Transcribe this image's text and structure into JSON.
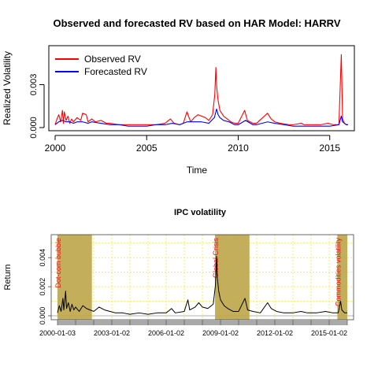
{
  "chart_data": [
    {
      "type": "line",
      "title": "Observed and forecasted RV based on HAR Model: HARRV",
      "xlabel": "Time",
      "ylabel": "Realized Volatility",
      "xlim": [
        2000,
        2016
      ],
      "ylim": [
        0,
        0.0055
      ],
      "x_ticks": [
        2000,
        2005,
        2010,
        2015
      ],
      "x_tick_labels": [
        "2000",
        "2005",
        "2010",
        "2015"
      ],
      "y_ticks": [
        0,
        0.003
      ],
      "y_tick_labels": [
        "0.000",
        "0.003"
      ],
      "legend": {
        "placement": "top-left"
      },
      "series": [
        {
          "name": "Observed RV",
          "color": "#ff0000",
          "points": [
            [
              2000.0,
              0.0002
            ],
            [
              2000.1,
              0.0006
            ],
            [
              2000.2,
              0.0009
            ],
            [
              2000.3,
              0.0004
            ],
            [
              2000.4,
              0.0012
            ],
            [
              2000.45,
              0.0003
            ],
            [
              2000.5,
              0.0011
            ],
            [
              2000.6,
              0.0005
            ],
            [
              2000.7,
              0.0008
            ],
            [
              2000.8,
              0.0003
            ],
            [
              2000.9,
              0.0006
            ],
            [
              2001.0,
              0.0004
            ],
            [
              2001.2,
              0.0007
            ],
            [
              2001.4,
              0.0005
            ],
            [
              2001.5,
              0.001
            ],
            [
              2001.7,
              0.0009
            ],
            [
              2001.8,
              0.0004
            ],
            [
              2002.0,
              0.0006
            ],
            [
              2002.2,
              0.0004
            ],
            [
              2002.5,
              0.0005
            ],
            [
              2002.8,
              0.0003
            ],
            [
              2003.0,
              0.0003
            ],
            [
              2003.5,
              0.0002
            ],
            [
              2004.0,
              0.0002
            ],
            [
              2004.5,
              0.0002
            ],
            [
              2005.0,
              0.0002
            ],
            [
              2005.5,
              0.0002
            ],
            [
              2006.0,
              0.0003
            ],
            [
              2006.3,
              0.0006
            ],
            [
              2006.5,
              0.0003
            ],
            [
              2006.8,
              0.0002
            ],
            [
              2007.0,
              0.0003
            ],
            [
              2007.2,
              0.0011
            ],
            [
              2007.4,
              0.0004
            ],
            [
              2007.6,
              0.0007
            ],
            [
              2007.8,
              0.0009
            ],
            [
              2008.0,
              0.0008
            ],
            [
              2008.2,
              0.0007
            ],
            [
              2008.4,
              0.0005
            ],
            [
              2008.6,
              0.0009
            ],
            [
              2008.72,
              0.0023
            ],
            [
              2008.78,
              0.0042
            ],
            [
              2008.82,
              0.0029
            ],
            [
              2008.9,
              0.0019
            ],
            [
              2009.0,
              0.0012
            ],
            [
              2009.1,
              0.001
            ],
            [
              2009.2,
              0.0008
            ],
            [
              2009.4,
              0.0006
            ],
            [
              2009.6,
              0.0004
            ],
            [
              2009.8,
              0.0003
            ],
            [
              2010.0,
              0.0003
            ],
            [
              2010.35,
              0.0012
            ],
            [
              2010.5,
              0.0005
            ],
            [
              2010.8,
              0.0003
            ],
            [
              2011.0,
              0.0003
            ],
            [
              2011.6,
              0.001
            ],
            [
              2011.8,
              0.0006
            ],
            [
              2012.0,
              0.0004
            ],
            [
              2012.3,
              0.0003
            ],
            [
              2012.8,
              0.0002
            ],
            [
              2013.0,
              0.0002
            ],
            [
              2013.45,
              0.0003
            ],
            [
              2013.6,
              0.0002
            ],
            [
              2014.0,
              0.0002
            ],
            [
              2014.5,
              0.0002
            ],
            [
              2014.9,
              0.0003
            ],
            [
              2015.2,
              0.0002
            ],
            [
              2015.5,
              0.0002
            ],
            [
              2015.63,
              0.0051
            ],
            [
              2015.7,
              0.0006
            ],
            [
              2015.8,
              0.0003
            ],
            [
              2015.9,
              0.0002
            ],
            [
              2016.0,
              0.0002
            ]
          ]
        },
        {
          "name": "Forecasted RV",
          "color": "#0000ff",
          "points": [
            [
              2000.0,
              0.0002
            ],
            [
              2000.2,
              0.0004
            ],
            [
              2000.4,
              0.0005
            ],
            [
              2000.6,
              0.0004
            ],
            [
              2000.8,
              0.0004
            ],
            [
              2001.0,
              0.0003
            ],
            [
              2001.2,
              0.0004
            ],
            [
              2001.5,
              0.0004
            ],
            [
              2001.8,
              0.0003
            ],
            [
              2002.0,
              0.0004
            ],
            [
              2002.5,
              0.0003
            ],
            [
              2003.0,
              0.0002
            ],
            [
              2003.5,
              0.0002
            ],
            [
              2004.0,
              0.0001
            ],
            [
              2004.5,
              0.0001
            ],
            [
              2005.0,
              0.0001
            ],
            [
              2005.5,
              0.0002
            ],
            [
              2006.0,
              0.0002
            ],
            [
              2006.4,
              0.0003
            ],
            [
              2006.8,
              0.0002
            ],
            [
              2007.2,
              0.0004
            ],
            [
              2007.6,
              0.0004
            ],
            [
              2008.0,
              0.0004
            ],
            [
              2008.4,
              0.0003
            ],
            [
              2008.7,
              0.0007
            ],
            [
              2008.78,
              0.0011
            ],
            [
              2008.82,
              0.0013
            ],
            [
              2008.9,
              0.0009
            ],
            [
              2009.0,
              0.0007
            ],
            [
              2009.2,
              0.0005
            ],
            [
              2009.5,
              0.0004
            ],
            [
              2009.8,
              0.0002
            ],
            [
              2010.0,
              0.0002
            ],
            [
              2010.4,
              0.0005
            ],
            [
              2010.8,
              0.0002
            ],
            [
              2011.0,
              0.0002
            ],
            [
              2011.6,
              0.0004
            ],
            [
              2012.0,
              0.0003
            ],
            [
              2012.5,
              0.0002
            ],
            [
              2013.0,
              0.0001
            ],
            [
              2013.5,
              0.0001
            ],
            [
              2014.0,
              0.0001
            ],
            [
              2014.5,
              0.0001
            ],
            [
              2015.0,
              0.0001
            ],
            [
              2015.5,
              0.0002
            ],
            [
              2015.63,
              0.0008
            ],
            [
              2015.7,
              0.0004
            ],
            [
              2015.9,
              0.0002
            ],
            [
              2016.0,
              0.0002
            ]
          ]
        }
      ]
    },
    {
      "type": "line",
      "title": "IPC volatility",
      "xlabel": "",
      "ylabel": "Return",
      "ylim": [
        0,
        0.0052
      ],
      "y_ticks": [
        0,
        0.002,
        0.004
      ],
      "y_tick_labels": [
        "0.000",
        "0.002",
        "0.004"
      ],
      "x_tick_labels": [
        "2000-01-03",
        "2003-01-02",
        "2006-01-02",
        "2009-01-02",
        "2012-01-02",
        "2015-01-02"
      ],
      "x_ticks": [
        2000.0,
        2003.0,
        2006.0,
        2009.0,
        2012.0,
        2015.0
      ],
      "xlim": [
        2000.0,
        2016.0
      ],
      "grid": true,
      "shaded_periods": [
        {
          "label": "Dot-com bubble",
          "start": 2000.0,
          "end": 2001.9
        },
        {
          "label": "Global Crisis",
          "start": 2008.7,
          "end": 2010.6
        },
        {
          "label": "Commodities volatility",
          "start": 2015.45,
          "end": 2016.0
        }
      ],
      "series": [
        {
          "name": "",
          "color": "#000000",
          "points": [
            [
              2000.0,
              0.0002
            ],
            [
              2000.1,
              0.0007
            ],
            [
              2000.2,
              0.0003
            ],
            [
              2000.3,
              0.0012
            ],
            [
              2000.35,
              0.0004
            ],
            [
              2000.45,
              0.0017
            ],
            [
              2000.5,
              0.0005
            ],
            [
              2000.6,
              0.0009
            ],
            [
              2000.7,
              0.0003
            ],
            [
              2000.8,
              0.0008
            ],
            [
              2000.9,
              0.0004
            ],
            [
              2001.0,
              0.0006
            ],
            [
              2001.2,
              0.0003
            ],
            [
              2001.4,
              0.0007
            ],
            [
              2001.6,
              0.0005
            ],
            [
              2001.8,
              0.0004
            ],
            [
              2002.0,
              0.0003
            ],
            [
              2002.3,
              0.0006
            ],
            [
              2002.6,
              0.0004
            ],
            [
              2002.9,
              0.0003
            ],
            [
              2003.2,
              0.0002
            ],
            [
              2003.6,
              0.0002
            ],
            [
              2004.0,
              0.0001
            ],
            [
              2004.5,
              0.0002
            ],
            [
              2005.0,
              0.0001
            ],
            [
              2005.5,
              0.0002
            ],
            [
              2006.0,
              0.0002
            ],
            [
              2006.3,
              0.0005
            ],
            [
              2006.5,
              0.0002
            ],
            [
              2007.0,
              0.0003
            ],
            [
              2007.2,
              0.0011
            ],
            [
              2007.3,
              0.0004
            ],
            [
              2007.6,
              0.0006
            ],
            [
              2007.8,
              0.0009
            ],
            [
              2008.0,
              0.0006
            ],
            [
              2008.3,
              0.0005
            ],
            [
              2008.6,
              0.0008
            ],
            [
              2008.72,
              0.0021
            ],
            [
              2008.78,
              0.0041
            ],
            [
              2008.82,
              0.0027
            ],
            [
              2008.9,
              0.0017
            ],
            [
              2009.0,
              0.0011
            ],
            [
              2009.2,
              0.0007
            ],
            [
              2009.4,
              0.0005
            ],
            [
              2009.7,
              0.0003
            ],
            [
              2010.0,
              0.0003
            ],
            [
              2010.35,
              0.0012
            ],
            [
              2010.5,
              0.0004
            ],
            [
              2010.8,
              0.0003
            ],
            [
              2011.2,
              0.0002
            ],
            [
              2011.6,
              0.0009
            ],
            [
              2011.8,
              0.0005
            ],
            [
              2012.1,
              0.0003
            ],
            [
              2012.5,
              0.0002
            ],
            [
              2013.0,
              0.0002
            ],
            [
              2013.45,
              0.0003
            ],
            [
              2013.8,
              0.0002
            ],
            [
              2014.3,
              0.0002
            ],
            [
              2014.8,
              0.0003
            ],
            [
              2015.2,
              0.0002
            ],
            [
              2015.5,
              0.0002
            ],
            [
              2015.63,
              0.001
            ],
            [
              2015.7,
              0.0004
            ],
            [
              2015.85,
              0.0002
            ],
            [
              2016.0,
              0.0002
            ]
          ]
        }
      ]
    }
  ]
}
